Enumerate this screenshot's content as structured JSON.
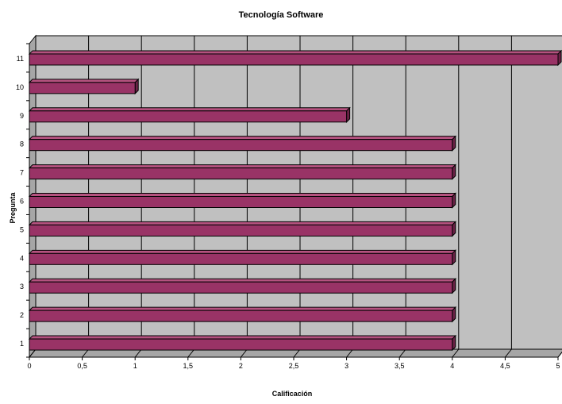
{
  "chart_data": {
    "type": "bar",
    "orientation": "horizontal",
    "style": "3d",
    "title": "Tecnología  Software",
    "xlabel": "Calificación",
    "ylabel": "Pregunta",
    "categories": [
      "1",
      "2",
      "3",
      "4",
      "5",
      "6",
      "7",
      "8",
      "9",
      "10",
      "11"
    ],
    "values": [
      4,
      4,
      4,
      4,
      4,
      4,
      4,
      4,
      3,
      1,
      5
    ],
    "xlim": [
      0,
      5
    ],
    "x_tick_labels": [
      "0",
      "0,5",
      "1",
      "1,5",
      "2",
      "2,5",
      "3",
      "3,5",
      "4",
      "4,5",
      "5"
    ],
    "grid": true,
    "legend": "none",
    "colors": {
      "bar_front": "#993366",
      "bar_top": "#b5527f",
      "bar_side": "#6a2246",
      "bar_outline": "#000000",
      "plot_back_wall": "#c0c0c0",
      "plot_side_wall": "#a6a6a6",
      "plot_floor": "#a6a6a6",
      "gridline": "#000000",
      "text": "#000000"
    }
  }
}
